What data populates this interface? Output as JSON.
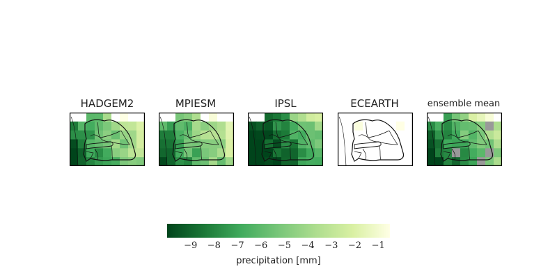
{
  "chart_data": {
    "type": "heatmap",
    "panels": [
      {
        "title": "HADGEM2"
      },
      {
        "title": "MPIESM"
      },
      {
        "title": "IPSL"
      },
      {
        "title": "ECEARTH"
      },
      {
        "title": "ensemble mean"
      }
    ],
    "colorbar": {
      "label": "precipitation [mm]",
      "range": [
        -10,
        -0.5
      ],
      "ticks": [
        -9,
        -8,
        -7,
        -6,
        -5,
        -4,
        -3,
        -2,
        -1
      ],
      "tick_labels": [
        "−9",
        "−8",
        "−7",
        "−6",
        "−5",
        "−4",
        "−3",
        "−2",
        "−1"
      ],
      "colormap": [
        "#00441b",
        "#1b7837",
        "#41ab5d",
        "#78c679",
        "#addd8e",
        "#d9f0a3",
        "#ffffe5"
      ]
    },
    "missing_color": "#999999"
  }
}
